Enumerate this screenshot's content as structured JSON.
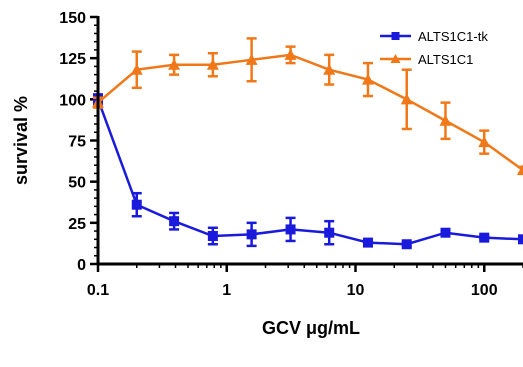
{
  "chart_data": {
    "type": "line",
    "xlabel": "GCV μg/mL",
    "ylabel": "survival %",
    "x_scale": "log",
    "xlim": [
      0.1,
      200
    ],
    "ylim": [
      0,
      150
    ],
    "x_ticks": [
      {
        "value": 0.1,
        "label": "0.1"
      },
      {
        "value": 1,
        "label": "1"
      },
      {
        "value": 10,
        "label": "10"
      },
      {
        "value": 100,
        "label": "100"
      }
    ],
    "y_ticks": [
      0,
      25,
      50,
      75,
      100,
      125,
      150
    ],
    "legend_position": "top-right",
    "series": [
      {
        "name": "ALTS1C1-tk",
        "color": "#1a1adc",
        "marker": "square",
        "points": [
          {
            "x": 0.1,
            "y": 100,
            "err": 3
          },
          {
            "x": 0.2,
            "y": 36,
            "err": 7
          },
          {
            "x": 0.39,
            "y": 26,
            "err": 5
          },
          {
            "x": 0.78,
            "y": 17,
            "err": 5
          },
          {
            "x": 1.56,
            "y": 18,
            "err": 7
          },
          {
            "x": 3.13,
            "y": 21,
            "err": 7
          },
          {
            "x": 6.25,
            "y": 19,
            "err": 7
          },
          {
            "x": 12.5,
            "y": 13,
            "err": 1
          },
          {
            "x": 25,
            "y": 12,
            "err": 1
          },
          {
            "x": 50,
            "y": 19,
            "err": 1
          },
          {
            "x": 100,
            "y": 16,
            "err": 1
          },
          {
            "x": 200,
            "y": 15,
            "err": 1
          }
        ]
      },
      {
        "name": "ALTS1C1",
        "color": "#f07818",
        "marker": "triangle",
        "points": [
          {
            "x": 0.1,
            "y": 98,
            "err": 3
          },
          {
            "x": 0.2,
            "y": 118,
            "err": 11
          },
          {
            "x": 0.39,
            "y": 121,
            "err": 6
          },
          {
            "x": 0.78,
            "y": 121,
            "err": 7
          },
          {
            "x": 1.56,
            "y": 124,
            "err": 13
          },
          {
            "x": 3.13,
            "y": 127,
            "err": 5
          },
          {
            "x": 6.25,
            "y": 118,
            "err": 9
          },
          {
            "x": 12.5,
            "y": 112,
            "err": 10
          },
          {
            "x": 25,
            "y": 100,
            "err": 18
          },
          {
            "x": 50,
            "y": 87,
            "err": 11
          },
          {
            "x": 100,
            "y": 74,
            "err": 7
          },
          {
            "x": 200,
            "y": 57,
            "err": 2
          }
        ]
      }
    ]
  }
}
